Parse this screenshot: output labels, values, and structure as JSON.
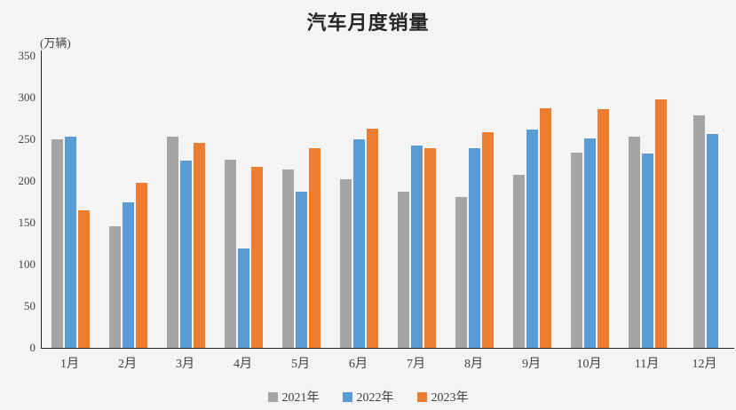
{
  "background_color": "#f4f4f4",
  "text_color": "#404040",
  "axis_color": "#262626",
  "chart_data": {
    "type": "bar",
    "title": "汽车月度销量",
    "ylabel": "(万辆)",
    "xlabel": "",
    "categories": [
      "1月",
      "2月",
      "3月",
      "4月",
      "5月",
      "6月",
      "7月",
      "8月",
      "9月",
      "10月",
      "11月",
      "12月"
    ],
    "series": [
      {
        "name": "2021年",
        "color": "#a5a5a5",
        "values": [
          250,
          146,
          253,
          226,
          214,
          202,
          187,
          181,
          207,
          234,
          253,
          279
        ]
      },
      {
        "name": "2022年",
        "color": "#5b9bd5",
        "values": [
          253,
          174,
          224,
          119,
          187,
          250,
          243,
          239,
          262,
          251,
          233,
          256
        ]
      },
      {
        "name": "2023年",
        "color": "#ed7d31",
        "values": [
          165,
          198,
          246,
          217,
          239,
          263,
          239,
          259,
          287,
          286,
          298,
          null
        ]
      }
    ],
    "ylim": [
      0,
      350
    ],
    "ytick_step": 50,
    "grid": false,
    "legend_position": "bottom"
  }
}
